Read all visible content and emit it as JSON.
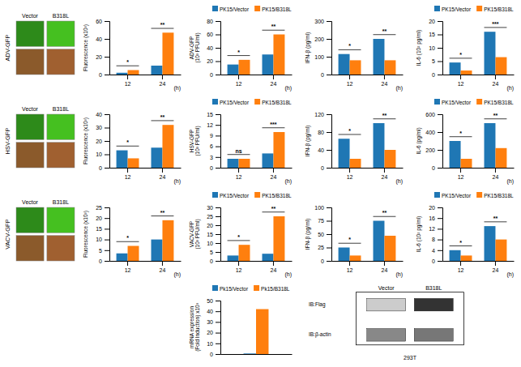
{
  "chart_data": [
    {
      "type": "image",
      "title": "ADV-GFP",
      "categories": [
        "Vector",
        "B318L"
      ],
      "colors": [
        "#2d8a1a",
        "#8b5a2b",
        "#45c020",
        "#a06030"
      ]
    },
    {
      "type": "bar",
      "ylabel": "Fluorescence (x10³)",
      "xlabel": "(h)",
      "categories": [
        "12",
        "24"
      ],
      "series": [
        {
          "values": [
            2,
            10
          ]
        },
        {
          "values": [
            5,
            47
          ]
        }
      ],
      "ylim": [
        0,
        60
      ],
      "yticks": [
        0,
        20,
        40,
        60
      ],
      "annotations": [
        "*",
        "**"
      ]
    },
    {
      "type": "bar",
      "ylabel": "ADV-GFP\n(10³ PFU/ml)",
      "xlabel": "(h)",
      "categories": [
        "12",
        "24"
      ],
      "series": [
        {
          "name": "PK15/Vector",
          "values": [
            15,
            30
          ]
        },
        {
          "name": "PK15/B318L",
          "values": [
            22,
            60
          ]
        }
      ],
      "ylim": [
        0,
        80
      ],
      "yticks": [
        0,
        20,
        40,
        60,
        80
      ],
      "annotations": [
        "*",
        "**"
      ],
      "legend": "upper left"
    },
    {
      "type": "bar",
      "ylabel": "IFN-β (pg/ml)",
      "xlabel": "(h)",
      "categories": [
        "12",
        "24"
      ],
      "series": [
        {
          "values": [
            115,
            200
          ]
        },
        {
          "values": [
            80,
            80
          ]
        }
      ],
      "ylim": [
        0,
        300
      ],
      "yticks": [
        0,
        100,
        200,
        300
      ],
      "annotations": [
        "*",
        "**"
      ]
    },
    {
      "type": "bar",
      "ylabel": "IL-6 (10² pg/ml)",
      "xlabel": "(h)",
      "categories": [
        "12",
        "24"
      ],
      "series": [
        {
          "name": "PK15/Vector",
          "values": [
            4.5,
            16
          ]
        },
        {
          "name": "PK15/B318L",
          "values": [
            1.5,
            6.5
          ]
        }
      ],
      "ylim": [
        0,
        20
      ],
      "yticks": [
        0,
        5,
        10,
        15,
        20
      ],
      "annotations": [
        "*",
        "***"
      ],
      "legend": "upper left"
    },
    {
      "type": "image",
      "title": "HSV-GFP",
      "categories": [
        "Vector",
        "B318L"
      ],
      "colors": [
        "#2d8a1a",
        "#8b5a2b",
        "#45c020",
        "#a06030"
      ]
    },
    {
      "type": "bar",
      "ylabel": "Fluorescence (x10³)",
      "xlabel": "(h)",
      "categories": [
        "12",
        "24"
      ],
      "series": [
        {
          "values": [
            13,
            15
          ]
        },
        {
          "values": [
            7,
            32
          ]
        }
      ],
      "ylim": [
        0,
        40
      ],
      "yticks": [
        0,
        10,
        20,
        30,
        40
      ],
      "annotations": [
        "*",
        "**"
      ]
    },
    {
      "type": "bar",
      "ylabel": "HSV-GFP\n(10³ PFU/ml)",
      "xlabel": "(h)",
      "categories": [
        "12",
        "24"
      ],
      "series": [
        {
          "name": "PK15/Vector",
          "values": [
            2.5,
            4
          ]
        },
        {
          "name": "PK15/B318L",
          "values": [
            2.5,
            10
          ]
        }
      ],
      "ylim": [
        0,
        15
      ],
      "yticks": [
        0,
        3,
        6,
        9,
        12,
        15
      ],
      "annotations": [
        "ns",
        "***"
      ],
      "legend": "upper left"
    },
    {
      "type": "bar",
      "ylabel": "IFN-β (pg/ml)",
      "xlabel": "(h)",
      "categories": [
        "12",
        "24"
      ],
      "series": [
        {
          "values": [
            65,
            100
          ]
        },
        {
          "values": [
            20,
            40
          ]
        }
      ],
      "ylim": [
        0,
        120
      ],
      "yticks": [
        0,
        40,
        80,
        120
      ],
      "annotations": [
        "*",
        "**"
      ]
    },
    {
      "type": "bar",
      "ylabel": "IL-6 (pg/ml)",
      "xlabel": "(h)",
      "categories": [
        "12",
        "24"
      ],
      "series": [
        {
          "name": "PK15/Vector",
          "values": [
            300,
            500
          ]
        },
        {
          "name": "PK15/B318L",
          "values": [
            100,
            220
          ]
        }
      ],
      "ylim": [
        0,
        600
      ],
      "yticks": [
        0,
        200,
        400,
        600
      ],
      "annotations": [
        "*",
        "**"
      ],
      "legend": "upper left"
    },
    {
      "type": "image",
      "title": "VACV-GFP",
      "categories": [
        "Vector",
        "B318L"
      ],
      "colors": [
        "#2d8a1a",
        "#8b5a2b",
        "#45c020",
        "#a06030"
      ]
    },
    {
      "type": "bar",
      "ylabel": "Fluorescence (x10³)",
      "xlabel": "(h)",
      "categories": [
        "12",
        "24"
      ],
      "series": [
        {
          "values": [
            3.5,
            10
          ]
        },
        {
          "values": [
            7,
            19
          ]
        }
      ],
      "ylim": [
        0,
        25
      ],
      "yticks": [
        0,
        5,
        10,
        15,
        20,
        25
      ],
      "annotations": [
        "*",
        "**"
      ]
    },
    {
      "type": "bar",
      "ylabel": "VACV-GFP\n(10³ PFU/ml)",
      "xlabel": "(h)",
      "categories": [
        "12",
        "24"
      ],
      "series": [
        {
          "name": "PK15/Vector",
          "values": [
            3,
            4
          ]
        },
        {
          "name": "PK15/B318L",
          "values": [
            9,
            25
          ]
        }
      ],
      "ylim": [
        0,
        30
      ],
      "yticks": [
        0,
        5,
        10,
        15,
        20,
        25,
        30
      ],
      "annotations": [
        "*",
        "**"
      ],
      "legend": "upper left"
    },
    {
      "type": "bar",
      "ylabel": "IFN-β (pg/ml)",
      "xlabel": "(h)",
      "categories": [
        "12",
        "24"
      ],
      "series": [
        {
          "values": [
            25,
            75
          ]
        },
        {
          "values": [
            10,
            47
          ]
        }
      ],
      "ylim": [
        0,
        100
      ],
      "yticks": [
        0,
        25,
        50,
        75,
        100
      ],
      "annotations": [
        "*",
        "**"
      ]
    },
    {
      "type": "bar",
      "ylabel": "IL-6 (10² pg/ml)",
      "xlabel": "(h)",
      "categories": [
        "12",
        "24"
      ],
      "series": [
        {
          "name": "PK15/Vector",
          "values": [
            4,
            13
          ]
        },
        {
          "name": "PK15/B318L",
          "values": [
            2,
            8
          ]
        }
      ],
      "ylim": [
        0,
        20
      ],
      "yticks": [
        0,
        4,
        8,
        12,
        16,
        20
      ],
      "annotations": [
        "*",
        "**"
      ],
      "legend": "upper left"
    },
    {
      "type": "bar",
      "ylabel": "mRNA expression\n(Fold Induction) x10³",
      "categories": [
        null
      ],
      "series": [
        {
          "name": "Pk15/Vector",
          "values": [
            0.5
          ]
        },
        {
          "name": "Pk15/B318L",
          "values": [
            42
          ]
        }
      ],
      "ylim": [
        0,
        50
      ],
      "yticks": [
        0,
        10,
        20,
        30,
        40,
        50
      ],
      "legend": "upper left",
      "tick_labels": "y"
    },
    {
      "type": "blot",
      "categories": [
        "Vector",
        "B318L"
      ],
      "annotations": [
        "IB:Flag",
        "IB:β-actin"
      ],
      "xlabel": "293T",
      "colors": [
        "#cccccc",
        "#333333",
        "#888888",
        "#777777"
      ]
    }
  ]
}
